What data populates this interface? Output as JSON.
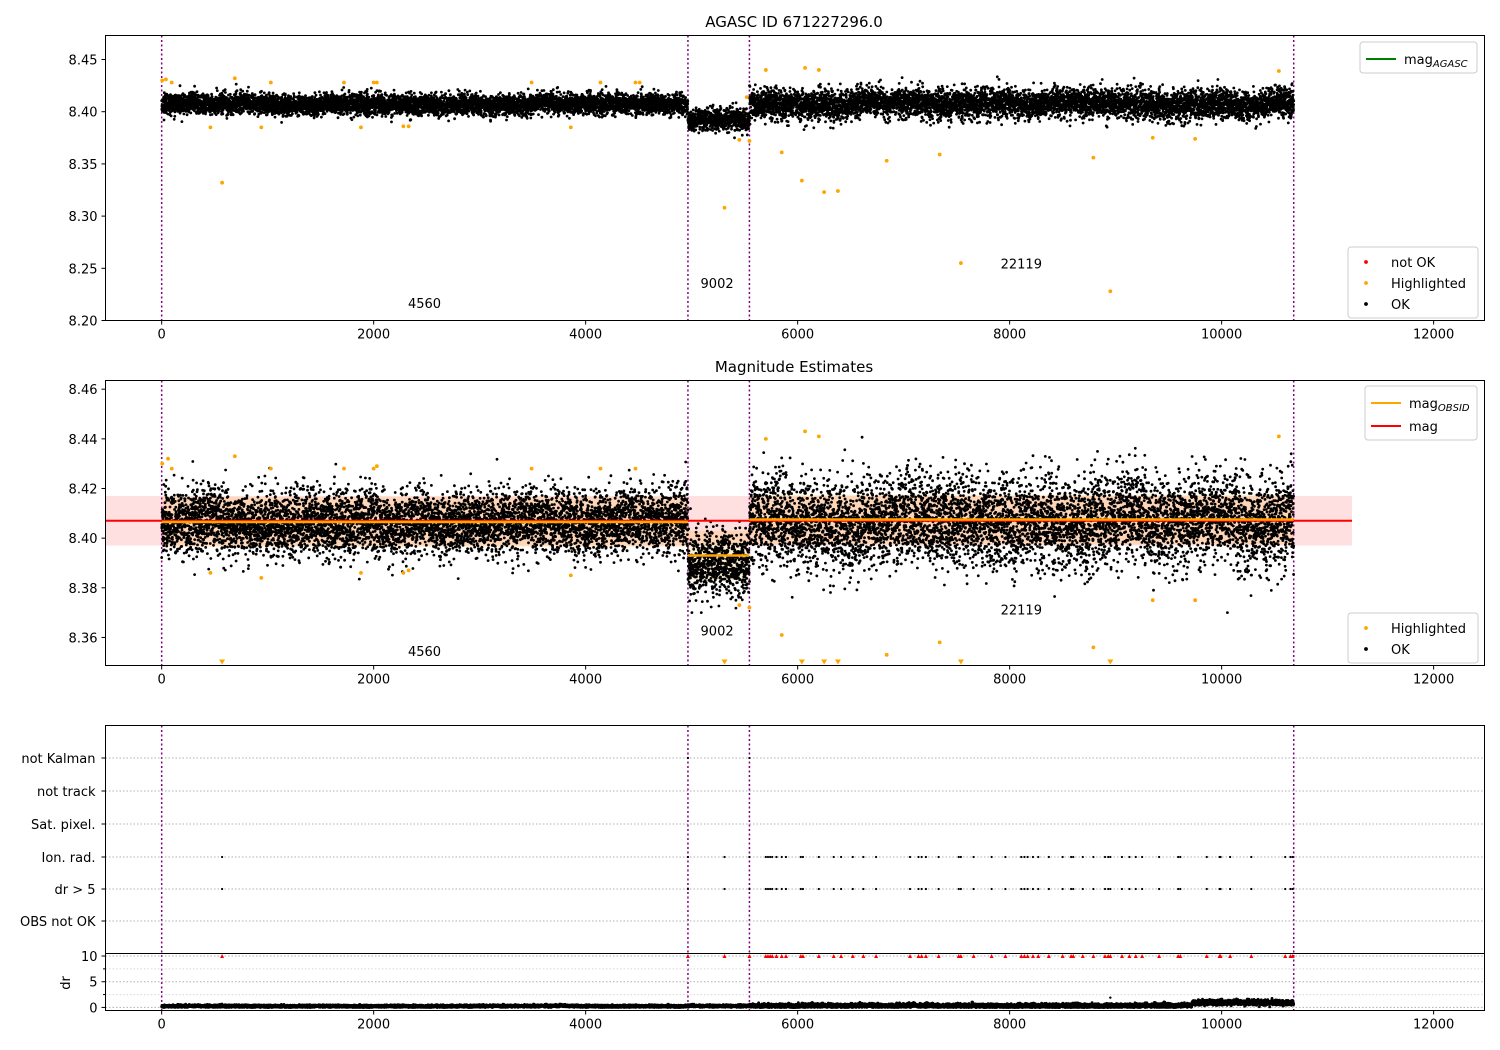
{
  "figure": {
    "panels": [
      {
        "id": "agasc",
        "title": "AGASC ID 671227296.0",
        "legend_top": [
          {
            "label": "mag",
            "sub": "AGASC",
            "color": "#008000"
          }
        ],
        "legend_bottom": [
          {
            "label": "not OK",
            "color": "#ff0000"
          },
          {
            "label": "Highlighted",
            "color": "#ffa500"
          },
          {
            "label": "OK",
            "color": "#000000"
          }
        ]
      },
      {
        "id": "estimates",
        "title": "Magnitude Estimates",
        "legend_top": [
          {
            "label": "mag",
            "sub": "OBSID",
            "color": "#ffa500"
          },
          {
            "label": "mag",
            "sub": "",
            "color": "#ff0000"
          }
        ],
        "legend_bottom": [
          {
            "label": "Highlighted",
            "color": "#ffa500"
          },
          {
            "label": "OK",
            "color": "#000000"
          }
        ]
      },
      {
        "id": "flags",
        "title": "",
        "ylabel_dr": "dr"
      }
    ]
  },
  "chart_data": [
    {
      "type": "scatter",
      "title": "AGASC ID 671227296.0",
      "xlabel": "",
      "ylabel": "",
      "xlim": [
        -530,
        12480
      ],
      "ylim": [
        8.2,
        8.473
      ],
      "xticks": [
        0,
        2000,
        4000,
        6000,
        8000,
        10000,
        12000
      ],
      "yticks": [
        8.2,
        8.25,
        8.3,
        8.35,
        8.4,
        8.45
      ],
      "grid": false,
      "legend": [
        "top-right",
        "bottom-right"
      ],
      "observation_boundaries": [
        0,
        4965,
        5545,
        10680
      ],
      "observation_labels": [
        {
          "text": "4560",
          "x": 2480,
          "y": 8.212
        },
        {
          "text": "9002",
          "x": 5240,
          "y": 8.231
        },
        {
          "text": "22119",
          "x": 8110,
          "y": 8.25
        }
      ],
      "series": [
        {
          "name": "OK",
          "color": "#000000",
          "segments": [
            {
              "x0": 0,
              "x1": 4965,
              "level": 8.4075,
              "spread": 0.005
            },
            {
              "x0": 4965,
              "x1": 5545,
              "level": 8.392,
              "spread": 0.005
            },
            {
              "x0": 5545,
              "x1": 10680,
              "level": 8.408,
              "spread": 0.007
            }
          ]
        },
        {
          "name": "Highlighted",
          "color": "#ffa500",
          "points": [
            [
              5,
              8.43
            ],
            [
              40,
              8.431
            ],
            [
              95,
              8.428
            ],
            [
              460,
              8.385
            ],
            [
              570,
              8.332
            ],
            [
              690,
              8.432
            ],
            [
              940,
              8.385
            ],
            [
              1030,
              8.428
            ],
            [
              1720,
              8.428
            ],
            [
              1880,
              8.385
            ],
            [
              2000,
              8.428
            ],
            [
              2030,
              8.428
            ],
            [
              2280,
              8.386
            ],
            [
              2330,
              8.386
            ],
            [
              3490,
              8.428
            ],
            [
              3860,
              8.385
            ],
            [
              4140,
              8.428
            ],
            [
              4470,
              8.428
            ],
            [
              4510,
              8.428
            ],
            [
              5310,
              8.308
            ],
            [
              5450,
              8.373
            ],
            [
              5520,
              8.414
            ],
            [
              5545,
              8.372
            ],
            [
              5700,
              8.44
            ],
            [
              5850,
              8.361
            ],
            [
              6040,
              8.334
            ],
            [
              6070,
              8.442
            ],
            [
              6200,
              8.44
            ],
            [
              6250,
              8.323
            ],
            [
              6380,
              8.324
            ],
            [
              6840,
              8.353
            ],
            [
              7340,
              8.359
            ],
            [
              7540,
              8.255
            ],
            [
              8790,
              8.356
            ],
            [
              8950,
              8.228
            ],
            [
              9350,
              8.375
            ],
            [
              9750,
              8.374
            ],
            [
              10540,
              8.439
            ]
          ]
        },
        {
          "name": "not OK",
          "color": "#ff0000",
          "points": []
        }
      ],
      "reference_lines": [
        {
          "name": "mag_AGASC",
          "color": "#008000",
          "value": null
        }
      ]
    },
    {
      "type": "scatter",
      "title": "Magnitude Estimates",
      "xlabel": "",
      "ylabel": "",
      "xlim": [
        -530,
        12480
      ],
      "ylim": [
        8.3487,
        8.4635
      ],
      "xticks": [
        0,
        2000,
        4000,
        6000,
        8000,
        10000,
        12000
      ],
      "yticks": [
        8.36,
        8.38,
        8.4,
        8.42,
        8.44,
        8.46
      ],
      "grid": false,
      "legend": [
        "top-right",
        "bottom-right"
      ],
      "observation_boundaries": [
        0,
        4965,
        5545,
        10680
      ],
      "observation_labels": [
        {
          "text": "4560",
          "x": 2480,
          "y": 8.3525
        },
        {
          "text": "9002",
          "x": 5240,
          "y": 8.3608
        },
        {
          "text": "22119",
          "x": 8110,
          "y": 8.3693
        }
      ],
      "series": [
        {
          "name": "OK",
          "color": "#000000",
          "segments": [
            {
              "x0": 0,
              "x1": 4965,
              "level": 8.406,
              "spread": 0.0065
            },
            {
              "x0": 4965,
              "x1": 5545,
              "level": 8.389,
              "spread": 0.0065
            },
            {
              "x0": 5545,
              "x1": 10680,
              "level": 8.407,
              "spread": 0.009
            }
          ]
        },
        {
          "name": "Highlighted",
          "color": "#ffa500",
          "points": [
            [
              5,
              8.43
            ],
            [
              60,
              8.432
            ],
            [
              95,
              8.428
            ],
            [
              460,
              8.386
            ],
            [
              690,
              8.433
            ],
            [
              940,
              8.384
            ],
            [
              1030,
              8.428
            ],
            [
              1720,
              8.428
            ],
            [
              1880,
              8.386
            ],
            [
              2000,
              8.428
            ],
            [
              2030,
              8.429
            ],
            [
              2280,
              8.386
            ],
            [
              2330,
              8.387
            ],
            [
              3490,
              8.428
            ],
            [
              3860,
              8.385
            ],
            [
              4140,
              8.428
            ],
            [
              4470,
              8.428
            ],
            [
              5450,
              8.373
            ],
            [
              5545,
              8.372
            ],
            [
              5700,
              8.44
            ],
            [
              5850,
              8.361
            ],
            [
              6070,
              8.443
            ],
            [
              6200,
              8.441
            ],
            [
              6840,
              8.353
            ],
            [
              7340,
              8.358
            ],
            [
              8790,
              8.356
            ],
            [
              9350,
              8.375
            ],
            [
              9750,
              8.375
            ],
            [
              10540,
              8.441
            ]
          ]
        },
        {
          "name": "Highlighted (below axis)",
          "color": "#ffa500",
          "marker": "triangle-down",
          "x": [
            570,
            5310,
            6040,
            6250,
            6380,
            7540,
            8950
          ]
        }
      ],
      "lines": [
        {
          "name": "mag_OBSID",
          "color": "#ffa500",
          "segments": [
            [
              0,
              4965,
              8.4065
            ],
            [
              4965,
              5545,
              8.393
            ],
            [
              5545,
              10680,
              8.4075
            ]
          ]
        },
        {
          "name": "mag",
          "color": "#ff0000",
          "value": 8.407,
          "x_range": [
            -530,
            11230
          ]
        }
      ],
      "bands": [
        {
          "color": "#ff0000",
          "alpha": 0.12,
          "y0": 8.397,
          "y1": 8.417,
          "x0": -530,
          "x1": 11230
        },
        {
          "color": "#ffa500",
          "alpha": 0.18,
          "segments": [
            [
              0,
              4965,
              8.3965,
              8.4165
            ],
            [
              4965,
              5545,
              8.383,
              8.403
            ],
            [
              5545,
              10680,
              8.3975,
              8.4175
            ]
          ]
        }
      ]
    },
    {
      "type": "scatter",
      "title": "",
      "xlabel": "",
      "ylabel": "",
      "xlim": [
        -530,
        12480
      ],
      "categories": [
        "not Kalman",
        "not track",
        "Sat. pixel.",
        "Ion. rad.",
        "dr > 5",
        "OBS not OK"
      ],
      "grid": true,
      "observation_boundaries": [
        0,
        4965,
        5545,
        10680
      ],
      "flag_events_x": [
        570,
        4965,
        5310,
        5545,
        5700,
        5720,
        5740,
        5760,
        5800,
        5850,
        5890,
        6030,
        6050,
        6200,
        6340,
        6410,
        6520,
        6620,
        6740,
        7060,
        7140,
        7170,
        7210,
        7330,
        7520,
        7540,
        7660,
        7830,
        7960,
        8110,
        8140,
        8170,
        8220,
        8270,
        8370,
        8500,
        8580,
        8600,
        8690,
        8790,
        8900,
        8930,
        8950,
        9060,
        9130,
        9190,
        9250,
        9410,
        9590,
        9610,
        9860,
        9980,
        9990,
        10080,
        10280,
        10600,
        10650,
        10670
      ],
      "not_kalman_x": [
        4965,
        5545
      ]
    },
    {
      "type": "scatter",
      "title": "",
      "xlabel": "",
      "ylabel": "dr",
      "xlim": [
        -530,
        12480
      ],
      "ylim": [
        -0.6,
        10.2
      ],
      "yticks": [
        0,
        5,
        10
      ],
      "yminor_ticks": [
        2.5,
        7.5
      ],
      "grid": false,
      "series": [
        {
          "name": "dr",
          "color": "#000000",
          "segments": [
            {
              "x0": 0,
              "x1": 4965,
              "level": 0.25,
              "spread": 0.12
            },
            {
              "x0": 4965,
              "x1": 5545,
              "level": 0.3,
              "spread": 0.12
            },
            {
              "x0": 5545,
              "x1": 9720,
              "level": 0.35,
              "spread": 0.2
            },
            {
              "x0": 9720,
              "x1": 10680,
              "level": 0.95,
              "spread": 0.25
            }
          ]
        },
        {
          "name": "dr clipped at 10",
          "color": "#ff0000",
          "marker": "triangle",
          "value": 10
        }
      ],
      "outliers": [
        [
          8950,
          1.9
        ]
      ]
    }
  ]
}
